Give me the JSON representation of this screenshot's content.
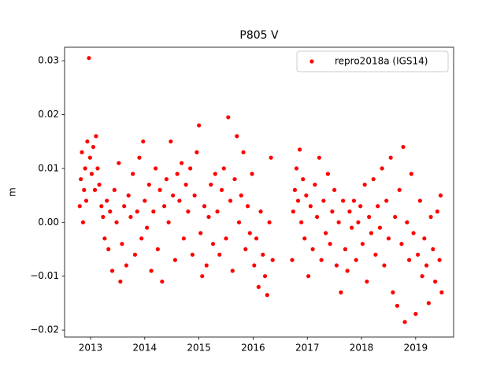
{
  "chart_data": {
    "type": "scatter",
    "title": "P805 V",
    "y_label": "m",
    "xlim": [
      2012.52,
      2019.7
    ],
    "ylim": [
      -0.0213,
      0.0325
    ],
    "xticks": [
      2013,
      2014,
      2015,
      2016,
      2017,
      2018,
      2019
    ],
    "yticks": [
      {
        "value": -0.02,
        "label": "−0.02"
      },
      {
        "value": -0.01,
        "label": "−0.01"
      },
      {
        "value": 0,
        "label": "0.00"
      },
      0.01,
      0.02,
      0.03
    ],
    "legend": "upper right",
    "series": [
      {
        "name": "repro2018a (IGS14)",
        "color": "#ff0000",
        "x": [
          2012.8,
          2012.82,
          2012.84,
          2012.86,
          2012.88,
          2012.9,
          2012.92,
          2012.94,
          2012.97,
          2012.99,
          2013.02,
          2013.05,
          2013.08,
          2013.1,
          2013.13,
          2013.16,
          2013.2,
          2013.23,
          2013.26,
          2013.3,
          2013.33,
          2013.36,
          2013.4,
          2013.44,
          2013.48,
          2013.52,
          2013.55,
          2013.58,
          2013.62,
          2013.66,
          2013.7,
          2013.74,
          2013.78,
          2013.82,
          2013.86,
          2013.9,
          2013.94,
          2013.97,
          2014.0,
          2014.04,
          2014.08,
          2014.12,
          2014.16,
          2014.2,
          2014.24,
          2014.28,
          2014.32,
          2014.36,
          2014.4,
          2014.44,
          2014.48,
          2014.52,
          2014.56,
          2014.6,
          2014.64,
          2014.68,
          2014.72,
          2014.76,
          2014.8,
          2014.84,
          2014.88,
          2014.92,
          2014.96,
          2015.0,
          2015.03,
          2015.06,
          2015.1,
          2015.14,
          2015.18,
          2015.22,
          2015.26,
          2015.3,
          2015.34,
          2015.38,
          2015.42,
          2015.46,
          2015.5,
          2015.54,
          2015.58,
          2015.62,
          2015.66,
          2015.7,
          2015.74,
          2015.78,
          2015.82,
          2015.86,
          2015.9,
          2015.94,
          2015.98,
          2016.02,
          2016.06,
          2016.1,
          2016.14,
          2016.18,
          2016.22,
          2016.26,
          2016.3,
          2016.33,
          2016.36,
          2016.72,
          2016.74,
          2016.77,
          2016.8,
          2016.83,
          2016.86,
          2016.89,
          2016.92,
          2016.95,
          2016.98,
          2017.02,
          2017.06,
          2017.1,
          2017.14,
          2017.18,
          2017.22,
          2017.26,
          2017.3,
          2017.34,
          2017.38,
          2017.42,
          2017.46,
          2017.5,
          2017.54,
          2017.58,
          2017.62,
          2017.66,
          2017.7,
          2017.74,
          2017.78,
          2017.82,
          2017.86,
          2017.9,
          2017.94,
          2017.98,
          2018.02,
          2018.06,
          2018.1,
          2018.14,
          2018.18,
          2018.22,
          2018.26,
          2018.3,
          2018.34,
          2018.38,
          2018.42,
          2018.46,
          2018.5,
          2018.54,
          2018.58,
          2018.62,
          2018.66,
          2018.7,
          2018.74,
          2018.77,
          2018.8,
          2018.84,
          2018.88,
          2018.92,
          2018.96,
          2019.0,
          2019.04,
          2019.08,
          2019.12,
          2019.16,
          2019.2,
          2019.24,
          2019.28,
          2019.32,
          2019.36,
          2019.4,
          2019.44,
          2019.46,
          2019.48
        ],
        "values": [
          0.003,
          0.008,
          0.013,
          0.0,
          0.006,
          0.01,
          0.004,
          0.015,
          0.0305,
          0.012,
          0.009,
          0.014,
          0.006,
          0.016,
          0.01,
          0.007,
          0.003,
          0.001,
          -0.003,
          0.004,
          -0.005,
          0.002,
          -0.009,
          0.006,
          0.0,
          0.011,
          -0.011,
          -0.004,
          0.003,
          -0.008,
          0.005,
          0.001,
          0.009,
          -0.006,
          0.002,
          0.012,
          -0.003,
          0.015,
          0.004,
          -0.001,
          0.007,
          -0.009,
          0.002,
          0.01,
          -0.005,
          0.006,
          -0.011,
          0.003,
          0.008,
          0.0,
          0.015,
          0.005,
          -0.007,
          0.009,
          0.004,
          0.011,
          -0.003,
          0.007,
          0.002,
          0.01,
          -0.006,
          0.005,
          0.013,
          0.018,
          -0.002,
          -0.01,
          0.003,
          -0.008,
          0.001,
          0.007,
          -0.004,
          0.009,
          0.002,
          -0.006,
          0.006,
          0.01,
          -0.003,
          0.0195,
          0.004,
          -0.009,
          0.008,
          0.016,
          0.0,
          0.005,
          0.013,
          -0.005,
          0.003,
          -0.002,
          0.009,
          -0.008,
          -0.003,
          -0.012,
          0.002,
          -0.006,
          -0.01,
          -0.0135,
          0.0,
          0.012,
          -0.007,
          -0.007,
          0.002,
          0.006,
          0.01,
          0.004,
          0.0135,
          0.0,
          0.008,
          -0.003,
          0.005,
          -0.01,
          0.003,
          -0.005,
          0.007,
          0.001,
          0.012,
          -0.007,
          0.004,
          -0.002,
          0.009,
          -0.004,
          0.002,
          0.006,
          -0.008,
          0.0,
          -0.013,
          0.004,
          -0.005,
          -0.009,
          0.002,
          -0.001,
          0.004,
          -0.007,
          0.0,
          0.003,
          -0.004,
          0.007,
          -0.011,
          0.001,
          -0.002,
          0.008,
          -0.006,
          0.003,
          -0.001,
          0.01,
          -0.008,
          0.004,
          -0.003,
          0.012,
          -0.013,
          0.001,
          -0.0155,
          0.006,
          -0.004,
          0.014,
          -0.0185,
          0.0,
          -0.007,
          0.009,
          -0.002,
          -0.017,
          -0.006,
          0.004,
          -0.01,
          -0.003,
          -0.008,
          -0.015,
          0.001,
          -0.005,
          -0.011,
          0.002,
          -0.007,
          0.005,
          -0.013
        ]
      }
    ]
  }
}
